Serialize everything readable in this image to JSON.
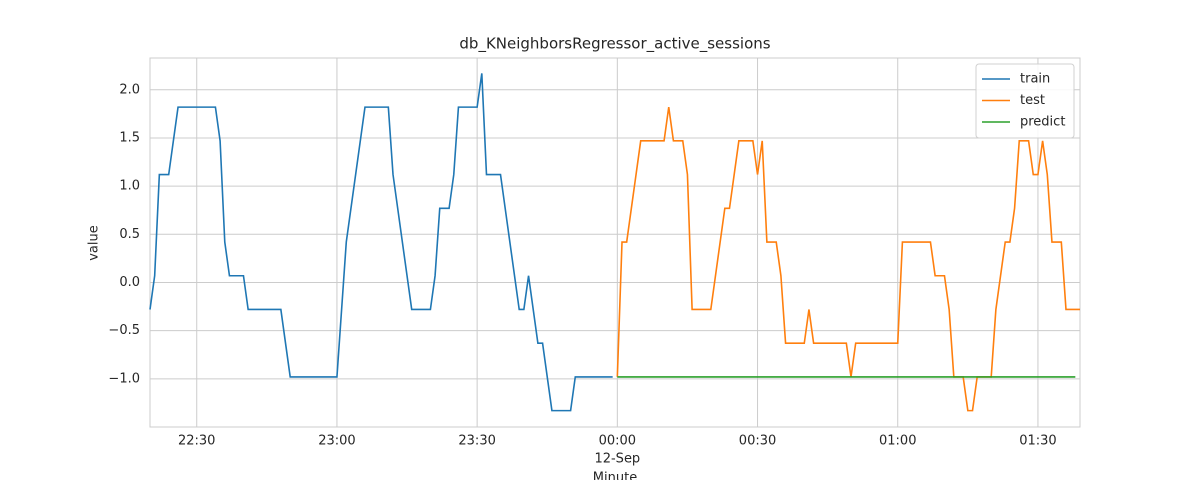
{
  "chart_data": {
    "type": "line",
    "title": "db_KNeighborsRegressor_active_sessions",
    "xlabel": "Minute",
    "ylabel": "value",
    "x_date_label": "12-Sep",
    "xlim": [
      "22:20",
      "01:39"
    ],
    "xticks": [
      "22:30",
      "23:00",
      "23:30",
      "00:00",
      "00:30",
      "01:00",
      "01:30"
    ],
    "ylim": [
      -1.5,
      2.33
    ],
    "yticks": [
      {
        "value": -1,
        "label": "−1.0"
      },
      {
        "value": -0.5,
        "label": "−0.5"
      },
      {
        "value": 0,
        "label": "0.0"
      },
      0.5,
      {
        "value": 1,
        "label": "1.0"
      },
      1.5,
      {
        "value": 2,
        "label": "2.0"
      }
    ],
    "grid": true,
    "legend": "upper right",
    "series": [
      {
        "name": "train",
        "color": "#1f77b4",
        "x": [
          "22:20",
          "22:21",
          "22:22",
          "22:24",
          "22:26",
          "22:34",
          "22:35",
          "22:36",
          "22:37",
          "22:40",
          "22:41",
          "22:48",
          "22:50",
          "23:00",
          "23:02",
          "23:06",
          "23:11",
          "23:12",
          "23:16",
          "23:20",
          "23:21",
          "23:22",
          "23:24",
          "23:25",
          "23:26",
          "23:30",
          "23:31",
          "23:32",
          "23:35",
          "23:39",
          "23:40",
          "23:41",
          "23:43",
          "23:44",
          "23:46",
          "23:50",
          "23:51",
          "23:59"
        ],
        "values": [
          -0.28,
          0.07,
          1.12,
          1.12,
          1.82,
          1.82,
          1.47,
          0.42,
          0.07,
          0.07,
          -0.28,
          -0.28,
          -0.98,
          -0.98,
          0.42,
          1.82,
          1.82,
          1.12,
          -0.28,
          -0.28,
          0.07,
          0.77,
          0.77,
          1.12,
          1.82,
          1.82,
          2.17,
          1.12,
          1.12,
          -0.28,
          -0.28,
          0.07,
          -0.63,
          -0.63,
          -1.33,
          -1.33,
          -0.98,
          -0.98
        ]
      },
      {
        "name": "test",
        "color": "#ff7f0e",
        "x": [
          "00:00",
          "00:01",
          "00:02",
          "00:05",
          "00:10",
          "00:11",
          "00:12",
          "00:14",
          "00:15",
          "00:16",
          "00:20",
          "00:23",
          "00:24",
          "00:26",
          "00:29",
          "00:30",
          "00:31",
          "00:32",
          "00:34",
          "00:35",
          "00:36",
          "00:40",
          "00:41",
          "00:42",
          "00:49",
          "00:50",
          "00:51",
          "01:00",
          "01:01",
          "01:07",
          "01:08",
          "01:10",
          "01:11",
          "01:12",
          "01:14",
          "01:15",
          "01:16",
          "01:17",
          "01:20",
          "01:21",
          "01:23",
          "01:24",
          "01:25",
          "01:26",
          "01:28",
          "01:29",
          "01:30",
          "01:31",
          "01:32",
          "01:33",
          "01:35",
          "01:36",
          "01:39"
        ],
        "values": [
          -0.98,
          0.42,
          0.42,
          1.47,
          1.47,
          1.82,
          1.47,
          1.47,
          1.12,
          -0.28,
          -0.28,
          0.77,
          0.77,
          1.47,
          1.47,
          1.12,
          1.47,
          0.42,
          0.42,
          0.07,
          -0.63,
          -0.63,
          -0.28,
          -0.63,
          -0.63,
          -0.98,
          -0.63,
          -0.63,
          0.42,
          0.42,
          0.07,
          0.07,
          -0.28,
          -0.98,
          -0.98,
          -1.33,
          -1.33,
          -0.98,
          -0.98,
          -0.28,
          0.42,
          0.42,
          0.77,
          1.47,
          1.47,
          1.12,
          1.12,
          1.47,
          1.12,
          0.42,
          0.42,
          -0.28,
          -0.28
        ]
      },
      {
        "name": "predict",
        "color": "#2ca02c",
        "x": [
          "00:00",
          "01:38"
        ],
        "values": [
          -0.98,
          -0.98
        ]
      }
    ]
  }
}
